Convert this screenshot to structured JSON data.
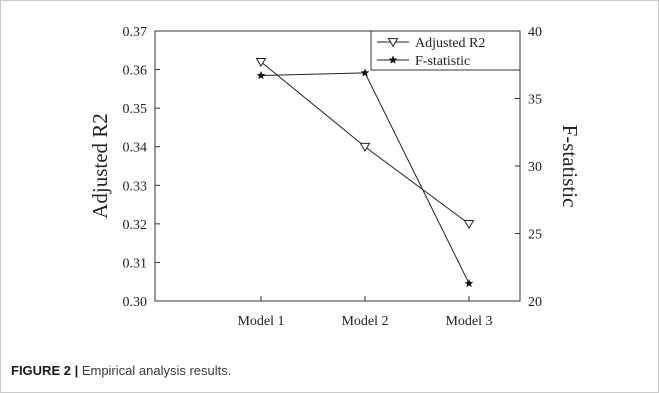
{
  "chart_data": {
    "type": "line",
    "categories": [
      "Model 1",
      "Model 2",
      "Model 3"
    ],
    "series": [
      {
        "name": "Adjusted R2",
        "axis": "left",
        "marker": "triangle-down-open",
        "values": [
          0.362,
          0.34,
          0.32
        ]
      },
      {
        "name": "F-statistic",
        "axis": "right",
        "marker": "star",
        "values": [
          36.7,
          36.9,
          21.3
        ]
      }
    ],
    "ylabel": "Adjusted R2",
    "ylabel_right": "F-statistic",
    "ylim": [
      0.3,
      0.37
    ],
    "ylim_right": [
      20,
      40
    ],
    "yticks": [
      "0.30",
      "0.31",
      "0.32",
      "0.33",
      "0.34",
      "0.35",
      "0.36",
      "0.37"
    ],
    "yticks_right": [
      "20",
      "25",
      "30",
      "35",
      "40"
    ],
    "legend_position": "top-right",
    "grid": false
  },
  "caption": {
    "label": "FIGURE 2 |",
    "text": " Empirical analysis results."
  }
}
